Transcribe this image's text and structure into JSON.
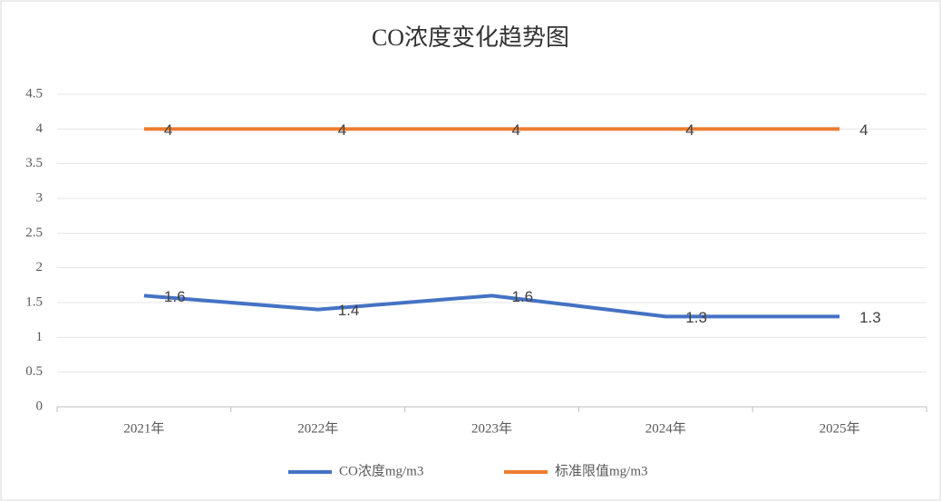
{
  "chart_data": {
    "type": "line",
    "title": "CO浓度变化趋势图",
    "categories": [
      "2021年",
      "2022年",
      "2023年",
      "2024年",
      "2025年"
    ],
    "series": [
      {
        "name": "CO浓度mg/m3",
        "color": "#4472c4",
        "values": [
          1.6,
          1.4,
          1.6,
          1.3,
          1.3
        ]
      },
      {
        "name": "标准限值mg/m3",
        "color": "#ed7d31",
        "values": [
          4,
          4,
          4,
          4,
          4
        ]
      }
    ],
    "ylim": [
      0,
      4.5
    ],
    "yticks": [
      0,
      0.5,
      1,
      1.5,
      2,
      2.5,
      3,
      3.5,
      4,
      4.5
    ],
    "grid": true,
    "legend": "bottom"
  }
}
